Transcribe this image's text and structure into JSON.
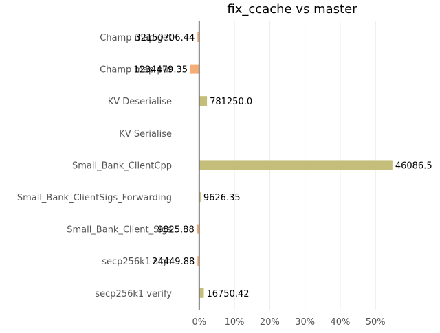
{
  "chart_data": {
    "type": "bar",
    "orientation": "horizontal",
    "title": "fix_ccache vs master",
    "xlabel": "",
    "ylabel": "",
    "xlim": [
      -2.5,
      56
    ],
    "x_ticks": [
      0,
      10,
      20,
      30,
      40,
      50
    ],
    "x_tick_labels": [
      "0%",
      "10%",
      "20%",
      "30%",
      "40%",
      "50%"
    ],
    "grid": "vertical",
    "categories": [
      "Champ map get",
      "Champ map put",
      "KV Deserialise",
      "KV Serialise",
      "Small_Bank_ClientCpp",
      "Small_Bank_ClientSigs_Forwarding",
      "Small_Bank_Client_Sigs",
      "secp256k1 sign",
      "secp256k1 verify"
    ],
    "values": [
      -0.5,
      -2.5,
      2.2,
      0.0,
      54.8,
      0.4,
      -0.6,
      -0.5,
      1.3
    ],
    "value_labels": [
      "32150706.44",
      "1234479.35",
      "781250.0",
      "",
      "46086.5",
      "9626.35",
      "9825.88",
      "24449.88",
      "16750.42"
    ],
    "colors": {
      "positive": "#c5bd7a",
      "negative": "#f4ad76",
      "zero_line": "#7a7a7a"
    }
  }
}
